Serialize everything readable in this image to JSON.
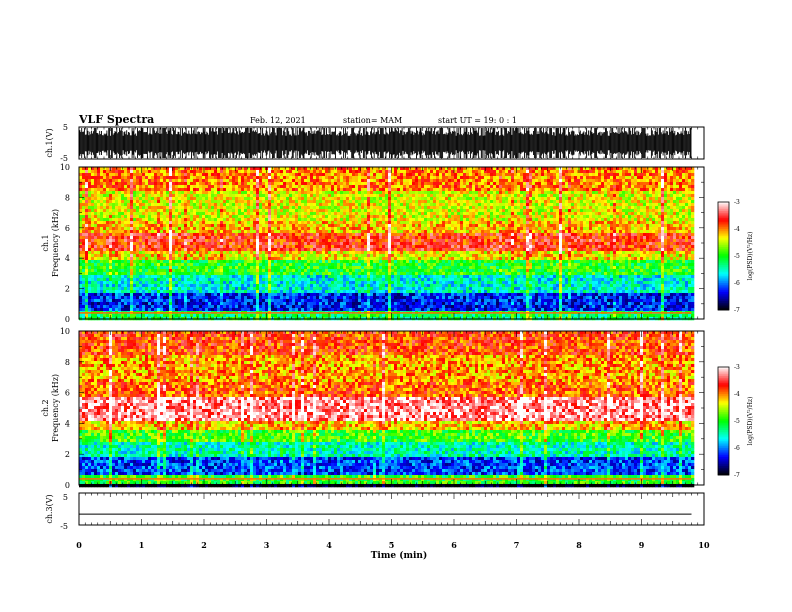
{
  "header": {
    "title": "VLF Spectra",
    "date": "Feb. 12, 2021",
    "station": "station= MAM",
    "start": "start  UT =   19: 0  : 1"
  },
  "chart_data": [
    {
      "type": "line",
      "name": "ch1-waveform",
      "ylabel": "ch.1(V)",
      "ylim": [
        -5,
        5
      ],
      "yticks": [
        "5",
        "-5"
      ],
      "xlim": [
        0,
        10
      ],
      "description_values": {
        "envelope_max": 5,
        "envelope_min": -5
      }
    },
    {
      "type": "heatmap",
      "name": "ch1-spectrogram",
      "ylabel": "ch.1\nFrequency  (kHz)",
      "ylabel_lines": [
        "ch.1",
        "Frequency  (kHz)"
      ],
      "ylim": [
        0,
        10
      ],
      "yticks": [
        0,
        2,
        4,
        6,
        8,
        10
      ],
      "xlim": [
        0,
        10
      ],
      "data_extent_min": 9.8,
      "bands": [
        {
          "f_lo": 0.0,
          "f_hi": 0.6,
          "level": -5.2
        },
        {
          "f_lo": 0.6,
          "f_hi": 1.8,
          "level": -6.3
        },
        {
          "f_lo": 1.8,
          "f_hi": 2.8,
          "level": -5.6
        },
        {
          "f_lo": 2.8,
          "f_hi": 3.8,
          "level": -5.0
        },
        {
          "f_lo": 3.8,
          "f_hi": 4.5,
          "level": -4.3
        },
        {
          "f_lo": 4.5,
          "f_hi": 5.6,
          "level": -3.7
        },
        {
          "f_lo": 5.6,
          "f_hi": 6.5,
          "level": -4.2
        },
        {
          "f_lo": 6.5,
          "f_hi": 8.5,
          "level": -4.4
        },
        {
          "f_lo": 8.5,
          "f_hi": 10.0,
          "level": -4.0
        }
      ],
      "colorbar": {
        "label": "log(PSD)(V²/Hz)",
        "range": [
          -7,
          -3
        ],
        "ticks": [
          "-3",
          "-4",
          "-5",
          "-6",
          "-7"
        ]
      }
    },
    {
      "type": "heatmap",
      "name": "ch2-spectrogram",
      "ylabel_lines": [
        "ch.2",
        "Frequency  (kHz)"
      ],
      "ylim": [
        0,
        10
      ],
      "yticks": [
        0,
        2,
        4,
        6,
        8,
        10
      ],
      "xlim": [
        0,
        10
      ],
      "data_extent_min": 9.8,
      "bands": [
        {
          "f_lo": 0.0,
          "f_hi": 0.6,
          "level": -5.0
        },
        {
          "f_lo": 0.6,
          "f_hi": 1.8,
          "level": -6.2
        },
        {
          "f_lo": 1.8,
          "f_hi": 2.8,
          "level": -5.5
        },
        {
          "f_lo": 2.8,
          "f_hi": 3.6,
          "level": -4.9
        },
        {
          "f_lo": 3.6,
          "f_hi": 4.2,
          "level": -4.2
        },
        {
          "f_lo": 4.2,
          "f_hi": 5.8,
          "level": -3.3
        },
        {
          "f_lo": 5.8,
          "f_hi": 6.6,
          "level": -3.9
        },
        {
          "f_lo": 6.6,
          "f_hi": 8.5,
          "level": -4.1
        },
        {
          "f_lo": 8.5,
          "f_hi": 10.0,
          "level": -3.8
        }
      ],
      "colorbar": {
        "label": "log(PSD)(V²/Hz)",
        "range": [
          -7,
          -3
        ],
        "ticks": [
          "-3",
          "-4",
          "-5",
          "-6",
          "-7"
        ]
      }
    },
    {
      "type": "line",
      "name": "ch3-waveform",
      "ylabel": "ch.3(V)",
      "ylim": [
        -5,
        5
      ],
      "yticks": [
        "5",
        "-5"
      ],
      "xlim": [
        0,
        10
      ],
      "x": [
        0,
        9.8
      ],
      "y": [
        -1.6,
        -1.6
      ]
    }
  ],
  "xaxis": {
    "label": "Time  (min)",
    "ticks": [
      "0",
      "1",
      "2",
      "3",
      "4",
      "5",
      "6",
      "7",
      "8",
      "9",
      "10"
    ]
  },
  "colors": {
    "colormap": [
      "#000000",
      "#0000ff",
      "#00ffff",
      "#00ff00",
      "#ffff00",
      "#ff0000",
      "#ffffff"
    ]
  }
}
